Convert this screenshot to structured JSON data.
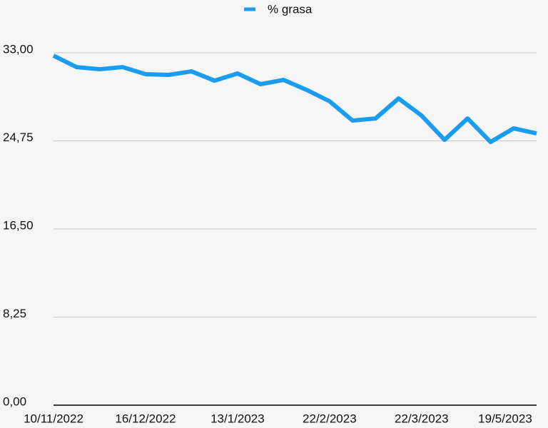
{
  "chart_data": {
    "type": "line",
    "categories": [
      "10/11/2022",
      null,
      null,
      null,
      "16/12/2022",
      null,
      null,
      null,
      "13/1/2023",
      null,
      null,
      null,
      "22/2/2023",
      null,
      null,
      null,
      "22/3/2023",
      null,
      null,
      null,
      "19/5/2023",
      null
    ],
    "series": [
      {
        "name": "% grasa",
        "color": "#1a9cf0",
        "values": [
          32.73,
          31.66,
          31.46,
          31.66,
          31.0,
          30.93,
          31.26,
          30.39,
          31.06,
          30.06,
          30.46,
          29.53,
          28.46,
          26.65,
          26.85,
          28.72,
          27.12,
          24.85,
          26.85,
          24.65,
          25.92,
          25.45
        ]
      }
    ],
    "ylim": [
      0,
      33
    ],
    "yticks": [
      {
        "value": 0,
        "label": "0,00"
      },
      {
        "value": 8.25,
        "label": "8,25"
      },
      {
        "value": 16.5,
        "label": "16,50"
      },
      {
        "value": 24.75,
        "label": "24,75"
      },
      {
        "value": 33,
        "label": "33,00"
      }
    ],
    "grid": true,
    "legend": "top"
  }
}
